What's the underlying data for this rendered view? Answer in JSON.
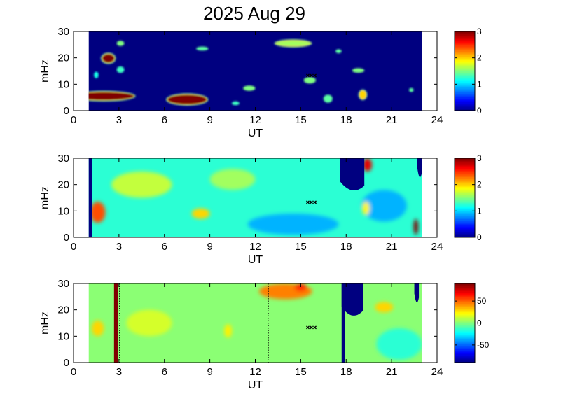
{
  "title": "2025 Aug 29",
  "colors": {
    "background": "#00008f",
    "marker": "#000000"
  },
  "chart_data": [
    {
      "type": "heatmap",
      "panel": 1,
      "xlabel": "UT",
      "ylabel": "mHz",
      "xlim": [
        0,
        24
      ],
      "ylim": [
        0,
        30
      ],
      "xticks": [
        0,
        3,
        6,
        9,
        12,
        15,
        18,
        21,
        24
      ],
      "yticks": [
        0,
        10,
        20,
        30
      ],
      "data_range_ut": [
        1.0,
        23.0
      ],
      "colorbar": {
        "min": 0,
        "max": 3,
        "ticks": [
          0,
          1,
          2,
          3
        ],
        "colormap": "jet"
      },
      "background_value": 0,
      "features": [
        {
          "ut": 2.0,
          "mhz": 5.5,
          "value": 3.0,
          "w": 4.0,
          "h": 3.0,
          "label": "blob"
        },
        {
          "ut": 7.5,
          "mhz": 4.2,
          "value": 3.0,
          "w": 2.6,
          "h": 3.6
        },
        {
          "ut": 2.3,
          "mhz": 19.8,
          "value": 3.0,
          "w": 0.8,
          "h": 3.2
        },
        {
          "ut": 3.1,
          "mhz": 25.5,
          "value": 1.5,
          "w": 0.5,
          "h": 2.0
        },
        {
          "ut": 3.1,
          "mhz": 15.5,
          "value": 1.3,
          "w": 0.5,
          "h": 2.5
        },
        {
          "ut": 1.5,
          "mhz": 13.5,
          "value": 1.2,
          "w": 0.3,
          "h": 2.5
        },
        {
          "ut": 8.5,
          "mhz": 23.5,
          "value": 1.4,
          "w": 0.8,
          "h": 1.5
        },
        {
          "ut": 14.5,
          "mhz": 25.5,
          "value": 1.6,
          "w": 2.3,
          "h": 2.0
        },
        {
          "ut": 17.5,
          "mhz": 22.5,
          "value": 1.4,
          "w": 0.4,
          "h": 1.5
        },
        {
          "ut": 18.8,
          "mhz": 15.2,
          "value": 1.5,
          "w": 0.8,
          "h": 1.8
        },
        {
          "ut": 15.6,
          "mhz": 11.5,
          "value": 1.5,
          "w": 0.8,
          "h": 2.5
        },
        {
          "ut": 11.6,
          "mhz": 8.5,
          "value": 1.5,
          "w": 0.8,
          "h": 2.0
        },
        {
          "ut": 16.8,
          "mhz": 4.5,
          "value": 1.4,
          "w": 0.6,
          "h": 3.0
        },
        {
          "ut": 19.1,
          "mhz": 6.0,
          "value": 2.0,
          "w": 0.4,
          "h": 3.0
        },
        {
          "ut": 10.7,
          "mhz": 2.8,
          "value": 1.3,
          "w": 0.5,
          "h": 1.5
        },
        {
          "ut": 22.3,
          "mhz": 7.8,
          "value": 1.4,
          "w": 0.3,
          "h": 1.5
        }
      ],
      "marker": {
        "ut": 15.7,
        "mhz": 13.3
      }
    },
    {
      "type": "heatmap",
      "panel": 2,
      "xlabel": "UT",
      "ylabel": "mHz",
      "xlim": [
        0,
        24
      ],
      "ylim": [
        0,
        30
      ],
      "xticks": [
        0,
        3,
        6,
        9,
        12,
        15,
        18,
        21,
        24
      ],
      "yticks": [
        0,
        10,
        20,
        30
      ],
      "data_range_ut": [
        1.0,
        23.0
      ],
      "colorbar": {
        "min": 0,
        "max": 3,
        "ticks": [
          0,
          1,
          2,
          3
        ],
        "colormap": "jet"
      },
      "background_value": 1.25,
      "features": [
        {
          "ut": 1.6,
          "mhz": 9.5,
          "value": 2.4,
          "w": 1.0,
          "h": 8.0
        },
        {
          "ut": 4.5,
          "mhz": 20.0,
          "value": 1.7,
          "w": 4.0,
          "h": 10.0
        },
        {
          "ut": 8.4,
          "mhz": 9.0,
          "value": 2.0,
          "w": 1.2,
          "h": 4.0
        },
        {
          "ut": 10.5,
          "mhz": 22.0,
          "value": 1.6,
          "w": 3.0,
          "h": 8.0
        },
        {
          "ut": 14.5,
          "mhz": 5.0,
          "value": 0.9,
          "w": 6.0,
          "h": 8.0
        },
        {
          "ut": 20.5,
          "mhz": 12.0,
          "value": 0.9,
          "w": 3.0,
          "h": 12.0
        },
        {
          "ut": 19.4,
          "mhz": 27.5,
          "value": 2.7,
          "w": 0.6,
          "h": 5.0
        },
        {
          "ut": 19.3,
          "mhz": 11.0,
          "value": 1.9,
          "w": 0.5,
          "h": 5.0
        },
        {
          "ut": 22.6,
          "mhz": 4.0,
          "value": 3.0,
          "w": 0.3,
          "h": 6.0
        }
      ],
      "notches": [
        {
          "ut_from": 17.6,
          "ut_to": 19.2,
          "mhz_bottom": 18.0,
          "value": 0
        },
        {
          "ut_from": 22.7,
          "ut_to": 23.0,
          "mhz_bottom": 23.0,
          "value": 0
        }
      ],
      "edge_lines": [
        {
          "ut": 1.0,
          "value": 0
        }
      ],
      "marker": {
        "ut": 15.7,
        "mhz": 13.3
      }
    },
    {
      "type": "heatmap",
      "panel": 3,
      "xlabel": "UT",
      "ylabel": "mHz",
      "xlim": [
        0,
        24
      ],
      "ylim": [
        0,
        30
      ],
      "xticks": [
        0,
        3,
        6,
        9,
        12,
        15,
        18,
        21,
        24
      ],
      "yticks": [
        0,
        10,
        20,
        30
      ],
      "data_range_ut": [
        1.0,
        23.0
      ],
      "colorbar": {
        "min": -90,
        "max": 90,
        "ticks": [
          -50,
          0,
          50
        ],
        "colormap": "jet"
      },
      "background_value": 2,
      "features": [
        {
          "ut": 1.6,
          "mhz": 13.0,
          "value": 30,
          "w": 0.8,
          "h": 6.0
        },
        {
          "ut": 14.0,
          "mhz": 27.0,
          "value": 45,
          "w": 3.5,
          "h": 6.0
        },
        {
          "ut": 15.0,
          "mhz": 28.5,
          "value": 60,
          "w": 0.8,
          "h": 3.0
        },
        {
          "ut": 10.2,
          "mhz": 12.0,
          "value": 25,
          "w": 0.5,
          "h": 5.0
        },
        {
          "ut": 5.0,
          "mhz": 15.0,
          "value": 15,
          "w": 3.0,
          "h": 10.0
        },
        {
          "ut": 20.5,
          "mhz": 21.0,
          "value": 30,
          "w": 1.2,
          "h": 4.0
        },
        {
          "ut": 21.5,
          "mhz": 7.0,
          "value": -15,
          "w": 3.0,
          "h": 12.0
        }
      ],
      "notches": [
        {
          "ut_from": 17.7,
          "ut_to": 19.1,
          "mhz_bottom": 18.0,
          "value": -90
        },
        {
          "ut_from": 22.5,
          "ut_to": 22.8,
          "mhz_bottom": 23.0,
          "value": -90
        }
      ],
      "vertical_lines": [
        {
          "ut": 2.8,
          "value": 90,
          "width": 0.25
        },
        {
          "ut": 17.8,
          "value": -90,
          "width": 0.2
        }
      ],
      "dotted_lines": [
        {
          "ut": 3.05
        },
        {
          "ut": 12.85
        }
      ],
      "marker": {
        "ut": 15.7,
        "mhz": 13.3
      }
    }
  ]
}
